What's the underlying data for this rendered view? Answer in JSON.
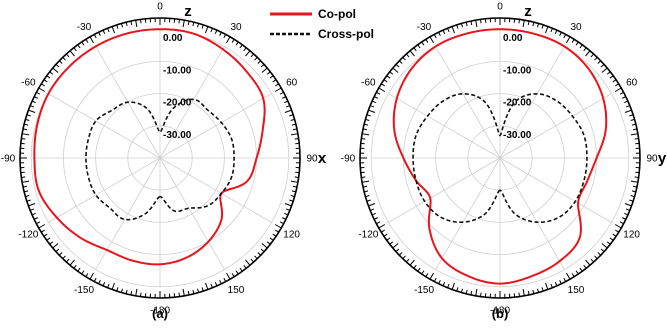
{
  "colors": {
    "co_pol": "#e8141e",
    "cross_pol": "#111111",
    "grid": "#d0d0d0",
    "frame": "#000000"
  },
  "legend": {
    "co_label": "Co-pol",
    "cross_label": "Cross-pol"
  },
  "chart_data": [
    {
      "type": "polar-line",
      "caption": "(a)",
      "top_axis_label": "z",
      "right_axis_label": "x",
      "angle_ticks": [
        "0",
        "30",
        "60",
        "90",
        "120",
        "150",
        "-180",
        "-150",
        "-120",
        "-90",
        "-60",
        "-30"
      ],
      "radial_ticks": [
        "0.00",
        "-10.00",
        "-20.00",
        "-30.00"
      ],
      "r_range_db": [
        -40,
        0
      ],
      "series": [
        {
          "name": "Co-pol",
          "style": "solid",
          "angles_deg": [
            -180,
            -165,
            -150,
            -135,
            -120,
            -105,
            -90,
            -75,
            -60,
            -45,
            -30,
            -15,
            0,
            15,
            30,
            45,
            60,
            75,
            90,
            105,
            120,
            135,
            150,
            165,
            180
          ],
          "gain_db": [
            -7,
            -7,
            -7,
            -5,
            -3,
            -1,
            -1,
            -0.5,
            0,
            0,
            0,
            0,
            0,
            0,
            -1,
            -2,
            -3,
            -7,
            -10,
            -12,
            -18,
            -13,
            -10,
            -8,
            -7
          ]
        },
        {
          "name": "Cross-pol",
          "style": "dashed",
          "angles_deg": [
            -180,
            -165,
            -150,
            -135,
            -120,
            -105,
            -90,
            -75,
            -60,
            -45,
            -30,
            -15,
            0,
            15,
            30,
            45,
            60,
            75,
            90,
            105,
            120,
            135,
            150,
            165,
            180
          ],
          "gain_db": [
            -28,
            -22,
            -18,
            -18,
            -17,
            -17,
            -17,
            -17,
            -17,
            -19,
            -20,
            -24,
            -32,
            -24,
            -19,
            -19,
            -18,
            -17,
            -17,
            -17,
            -18,
            -19,
            -22,
            -23,
            -28
          ]
        }
      ]
    },
    {
      "type": "polar-line",
      "caption": "(b)",
      "top_axis_label": "z",
      "right_axis_label": "y",
      "angle_ticks": [
        "0",
        "30",
        "60",
        "90",
        "120",
        "150",
        "-180",
        "-150",
        "-120",
        "-90",
        "-60",
        "-30"
      ],
      "radial_ticks": [
        "0.00",
        "-10.00",
        "-20.00",
        "-30.00"
      ],
      "r_range_db": [
        -40,
        0
      ],
      "series": [
        {
          "name": "Co-pol",
          "style": "solid",
          "angles_deg": [
            -180,
            -165,
            -150,
            -135,
            -120,
            -105,
            -90,
            -75,
            -60,
            -45,
            -30,
            -15,
            0,
            15,
            30,
            45,
            60,
            75,
            90,
            105,
            120,
            135,
            150,
            165,
            180
          ],
          "gain_db": [
            -1,
            -2,
            -4,
            -9,
            -15,
            -13,
            -10,
            -6,
            -3,
            -1,
            0,
            0,
            0,
            0,
            0,
            -1,
            -3,
            -6,
            -10,
            -12,
            -12,
            -5,
            -3,
            -2,
            -1
          ]
        },
        {
          "name": "Cross-pol",
          "style": "dashed",
          "angles_deg": [
            -180,
            -165,
            -150,
            -135,
            -120,
            -105,
            -90,
            -75,
            -60,
            -45,
            -30,
            -15,
            0,
            15,
            30,
            45,
            60,
            75,
            90,
            105,
            120,
            135,
            150,
            165,
            180
          ],
          "gain_db": [
            -30,
            -22,
            -17,
            -14,
            -13,
            -13,
            -13,
            -13,
            -14,
            -15,
            -17,
            -22,
            -33,
            -22,
            -17,
            -15,
            -14,
            -13,
            -13,
            -13,
            -13,
            -14,
            -17,
            -22,
            -30
          ]
        }
      ]
    }
  ]
}
